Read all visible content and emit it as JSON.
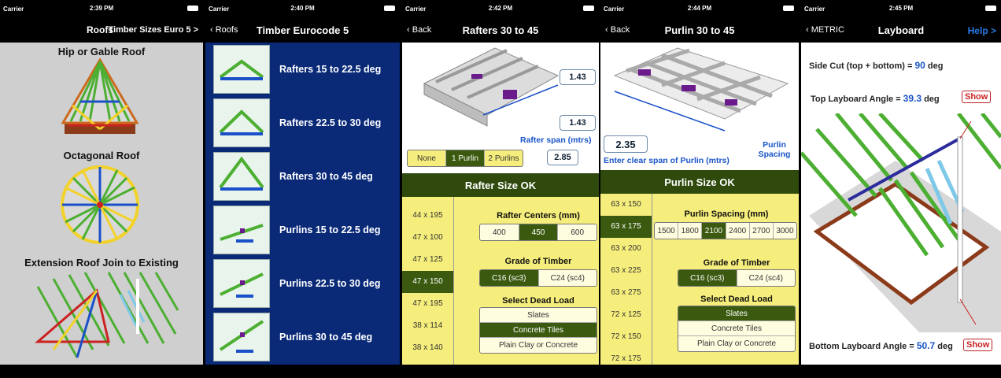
{
  "screens": {
    "roofs": {
      "status": {
        "carrier": "Carrier",
        "time": "2:39 PM"
      },
      "nav": {
        "title": "Roofs",
        "right": "Timber Sizes Euro 5 >"
      },
      "items": [
        "Hip or Gable Roof",
        "Octagonal Roof",
        "Extension Roof Join to Existing"
      ]
    },
    "eurocode": {
      "status": {
        "carrier": "Carrier",
        "time": "2:40 PM"
      },
      "nav": {
        "back": "Roofs",
        "title": "Timber Eurocode 5"
      },
      "rows": [
        "Rafters 15 to 22.5 deg",
        "Rafters 22.5 to 30 deg",
        "Rafters 30 to 45 deg",
        "Purlins 15 to 22.5 deg",
        "Purlins 22.5 to 30 deg",
        "Purlins 30 to 45 deg"
      ]
    },
    "rafters": {
      "status": {
        "carrier": "Carrier",
        "time": "2:42 PM"
      },
      "nav": {
        "back": "Back",
        "title": "Rafters 30 to 45"
      },
      "dim1": "1.43",
      "dim2": "1.43",
      "span_label": "Rafter span (mtrs)",
      "span_value": "2.85",
      "purlin_options": [
        "None",
        "1 Purlin",
        "2 Purlins"
      ],
      "purlin_selected": 1,
      "result": "Rafter Size OK",
      "sizes": [
        "44 x 195",
        "47 x 100",
        "47 x 125",
        "47 x 150",
        "47 x 195",
        "38 x 114",
        "38 x 140"
      ],
      "size_selected": 3,
      "centers_label": "Rafter Centers (mm)",
      "centers": [
        "400",
        "450",
        "600"
      ],
      "centers_selected": 1,
      "grade_label": "Grade of Timber",
      "grades": [
        "C16 (sc3)",
        "C24 (sc4)"
      ],
      "grade_selected": 0,
      "load_label": "Select Dead Load",
      "loads": [
        "Slates",
        "Concrete Tiles",
        "Plain Clay or Concrete"
      ],
      "load_selected": 1
    },
    "purlin": {
      "status": {
        "carrier": "Carrier",
        "time": "2:44 PM"
      },
      "nav": {
        "back": "Back",
        "title": "Purlin 30 to 45"
      },
      "span_value": "2.35",
      "span_label": "Enter clear span of Purlin (mtrs)",
      "spacing_note": "Purlin Spacing",
      "result": "Purlin Size OK",
      "sizes": [
        "63 x 150",
        "63 x 175",
        "63 x 200",
        "63 x 225",
        "63 x 275",
        "72 x 125",
        "72 x 150",
        "72 x 175"
      ],
      "size_selected": 1,
      "spacing_label": "Purlin Spacing (mm)",
      "spacings": [
        "1500",
        "1800",
        "2100",
        "2400",
        "2700",
        "3000"
      ],
      "spacing_selected": 2,
      "grade_label": "Grade of Timber",
      "grades": [
        "C16 (sc3)",
        "C24 (sc4)"
      ],
      "grade_selected": 0,
      "load_label": "Select Dead Load",
      "loads": [
        "Slates",
        "Concrete Tiles",
        "Plain Clay or Concrete"
      ],
      "load_selected": 0
    },
    "layboard": {
      "status": {
        "carrier": "Carrier",
        "time": "2:45 PM"
      },
      "nav": {
        "back": "METRIC",
        "title": "Layboard",
        "right": "Help >"
      },
      "side_cut_label": "Side Cut (top + bottom) =",
      "side_cut_value": "90",
      "side_cut_unit": "deg",
      "top_label": "Top Layboard Angle =",
      "top_value": "39.3",
      "top_unit": "deg",
      "bottom_label": "Bottom Layboard Angle =",
      "bottom_value": "50.7",
      "bottom_unit": "deg",
      "show": "Show"
    }
  },
  "colors": {
    "accent_green": "#3b5a10",
    "panel_yellow": "#f6ee7c",
    "navy": "#0a2a78",
    "value_blue": "#1a55c8"
  }
}
